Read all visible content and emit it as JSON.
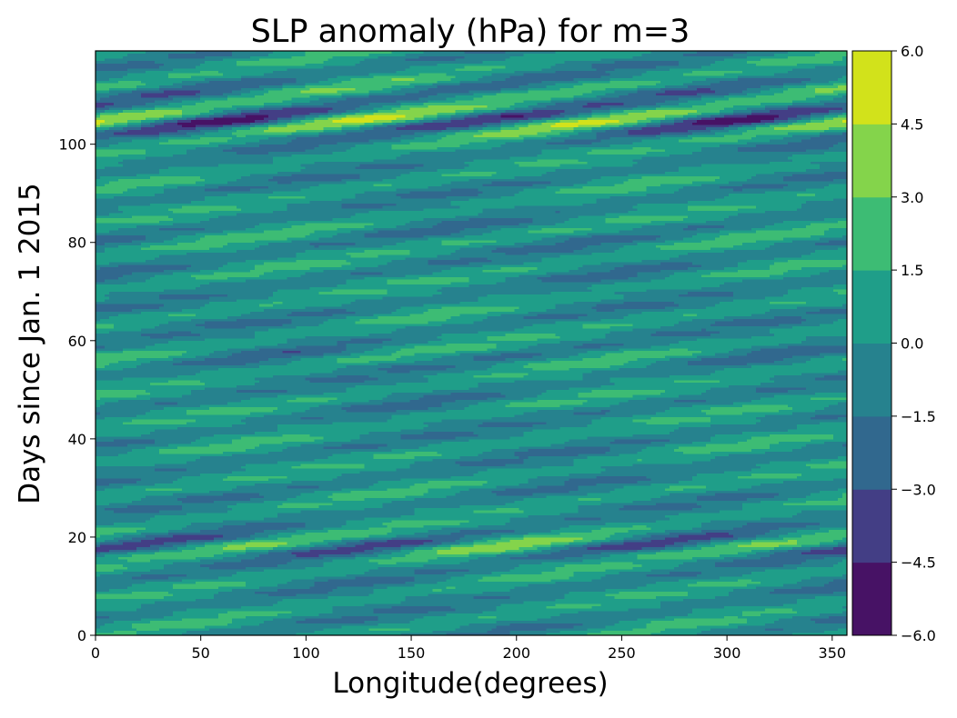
{
  "chart_data": {
    "type": "heatmap",
    "title": "SLP anomaly (hPa) for m=3",
    "xlabel": "Longitude(degrees)",
    "ylabel": "Days since Jan. 1 2015",
    "xlim": [
      0,
      357
    ],
    "ylim": [
      0,
      119
    ],
    "x_ticks": [
      0,
      50,
      100,
      150,
      200,
      250,
      300,
      350
    ],
    "y_ticks": [
      0,
      20,
      40,
      60,
      80,
      100
    ],
    "colorbar": {
      "levels": [
        -6.0,
        -4.5,
        -3.0,
        -1.5,
        0.0,
        1.5,
        3.0,
        4.5,
        6.0
      ],
      "tick_labels": [
        "−6.0",
        "−4.5",
        "−3.0",
        "−1.5",
        "0.0",
        "1.5",
        "3.0",
        "4.5",
        "6.0"
      ],
      "colors": [
        "#471265",
        "#433e85",
        "#31688e",
        "#26828e",
        "#1f9e89",
        "#3dbc74",
        "#84d44b",
        "#d2e21b"
      ]
    },
    "zonal_wavenumber": 3,
    "grid": false,
    "colorbar_position": "right"
  }
}
